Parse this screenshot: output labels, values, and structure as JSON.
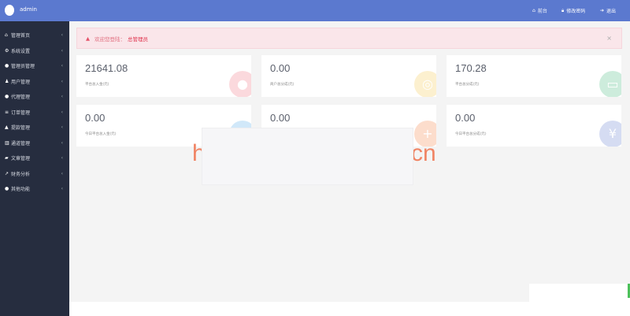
{
  "header": {
    "username": "admin",
    "nav": [
      {
        "icon": "home-icon",
        "label": "前台"
      },
      {
        "icon": "lock-icon",
        "label": "修改密码"
      },
      {
        "icon": "logout-icon",
        "label": "退出"
      }
    ]
  },
  "sidebar": {
    "items": [
      {
        "icon": "home-icon",
        "label": "管理首页"
      },
      {
        "icon": "gears-icon",
        "label": "系统设置"
      },
      {
        "icon": "user-circle-icon",
        "label": "管理员管理"
      },
      {
        "icon": "users-icon",
        "label": "用户管理"
      },
      {
        "icon": "agent-icon",
        "label": "代理管理"
      },
      {
        "icon": "list-icon",
        "label": "订单管理"
      },
      {
        "icon": "withdraw-icon",
        "label": "提款管理"
      },
      {
        "icon": "bank-icon",
        "label": "通道管理"
      },
      {
        "icon": "book-icon",
        "label": "文章管理"
      },
      {
        "icon": "chart-icon",
        "label": "财务分析"
      },
      {
        "icon": "misc-icon",
        "label": "其他功能"
      }
    ]
  },
  "alert": {
    "text": "欢迎您登陆：",
    "role": "总管理员",
    "close": "×"
  },
  "cards": [
    {
      "value": "21641.08",
      "label": "平台总入金(元)",
      "icon": "piggy-bank-icon",
      "color": "#f36a7a"
    },
    {
      "value": "0.00",
      "label": "商户总分成(元)",
      "icon": "coins-icon",
      "color": "#f5c542"
    },
    {
      "value": "170.28",
      "label": "平台总分成(元)",
      "icon": "card-icon",
      "color": "#3cb878"
    },
    {
      "value": "0.00",
      "label": "今日平台总入金(元)",
      "icon": "cloud-icon",
      "color": "#4aa8e8"
    },
    {
      "value": "0.00",
      "label": "",
      "icon": "coins-plus-icon",
      "color": "#f57c3a"
    },
    {
      "value": "0.00",
      "label": "今日平台总分成(元)",
      "icon": "money-bag-icon",
      "color": "#5b79cf"
    }
  ],
  "watermark": {
    "left": "h",
    "right": "cn"
  }
}
